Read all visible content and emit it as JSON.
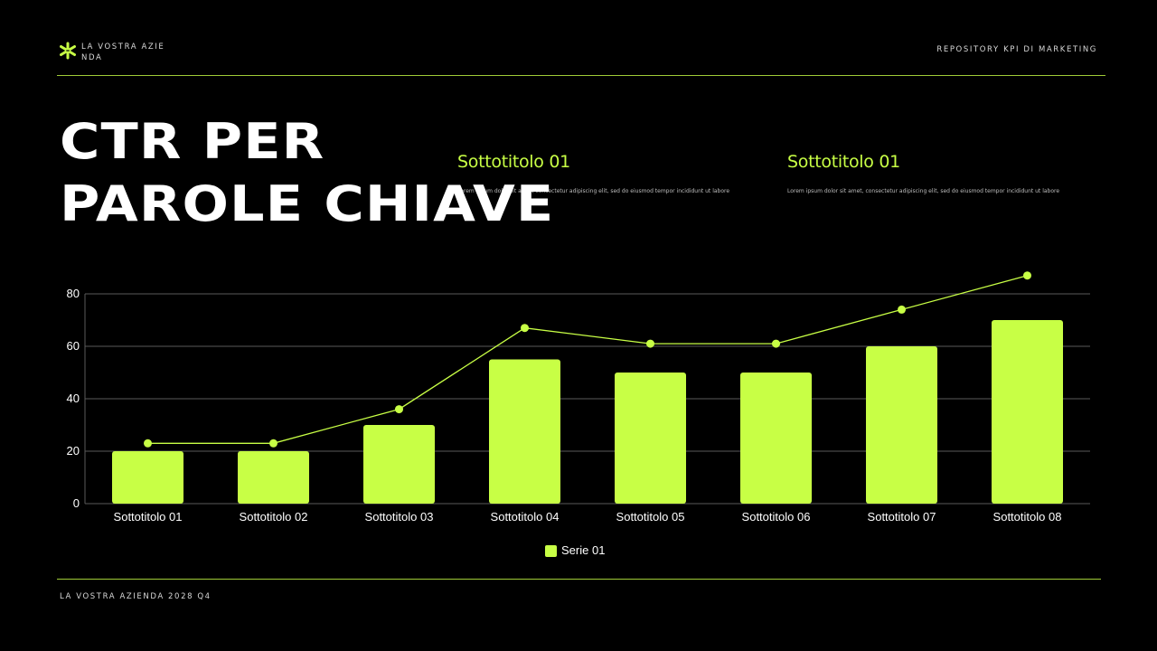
{
  "header": {
    "logo_text": "LA VOSTRA AZIENDA",
    "repository": "REPOSITORY KPI DI MARKETING",
    "icon": "asterisk-icon",
    "accent": "#c8ff45"
  },
  "title": {
    "line1": "CTR PER",
    "line2": "PAROLE CHIAVE"
  },
  "subtitles": [
    {
      "title": "Sottotitolo 01",
      "body": "Lorem ipsum dolor sit amet, consectetur adipiscing elit, sed do eiusmod tempor incididunt ut labore"
    },
    {
      "title": "Sottotitolo 01",
      "body": "Lorem ipsum dolor sit amet, consectetur adipiscing elit, sed do eiusmod tempor incididunt ut labore"
    }
  ],
  "footer": {
    "text": "LA VOSTRA AZIENDA 2028 Q4"
  },
  "chart_data": {
    "type": "bar",
    "categories": [
      "Sottotitolo 01",
      "Sottotitolo 02",
      "Sottotitolo 03",
      "Sottotitolo 04",
      "Sottotitolo 05",
      "Sottotitolo 06",
      "Sottotitolo 07",
      "Sottotitolo 08"
    ],
    "series": [
      {
        "name": "Serie 01",
        "values": [
          20,
          20,
          30,
          55,
          50,
          50,
          60,
          70
        ],
        "color": "#c8ff45"
      }
    ],
    "line_overlay": {
      "values": [
        23,
        23,
        36,
        67,
        61,
        61,
        74,
        87
      ],
      "color": "#c8ff45"
    },
    "ylim": [
      0,
      80
    ],
    "yticks": [
      0,
      20,
      40,
      60,
      80
    ],
    "grid": true,
    "legend": "bottom-center"
  }
}
